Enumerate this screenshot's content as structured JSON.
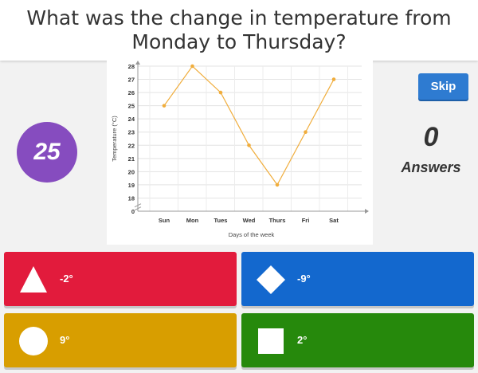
{
  "question": "What was the change in temperature from Monday to Thursday?",
  "timer": "25",
  "skip_label": "Skip",
  "answers_count": "0",
  "answers_label": "Answers",
  "answers": [
    {
      "label": "-2°",
      "shape": "triangle-icon",
      "color": "#e21b3c"
    },
    {
      "label": "-9°",
      "shape": "diamond-icon",
      "color": "#1368ce"
    },
    {
      "label": "9°",
      "shape": "circle-icon",
      "color": "#d89e00"
    },
    {
      "label": "2°",
      "shape": "square-icon",
      "color": "#26890c"
    }
  ],
  "colors": {
    "timer": "#864cbf",
    "skip": "#2e7bd1",
    "line": "#f0ad3c"
  },
  "chart_data": {
    "type": "line",
    "categories": [
      "Sun",
      "Mon",
      "Tues",
      "Wed",
      "Thurs",
      "Fri",
      "Sat"
    ],
    "values": [
      25,
      28,
      26,
      22,
      19,
      23,
      27
    ],
    "xlabel": "Days of the week",
    "ylabel": "Temperature (°C)",
    "yticks": [
      "0",
      "18",
      "19",
      "20",
      "21",
      "22",
      "23",
      "24",
      "25",
      "26",
      "27",
      "28"
    ],
    "axis_break": true,
    "grid": true
  }
}
